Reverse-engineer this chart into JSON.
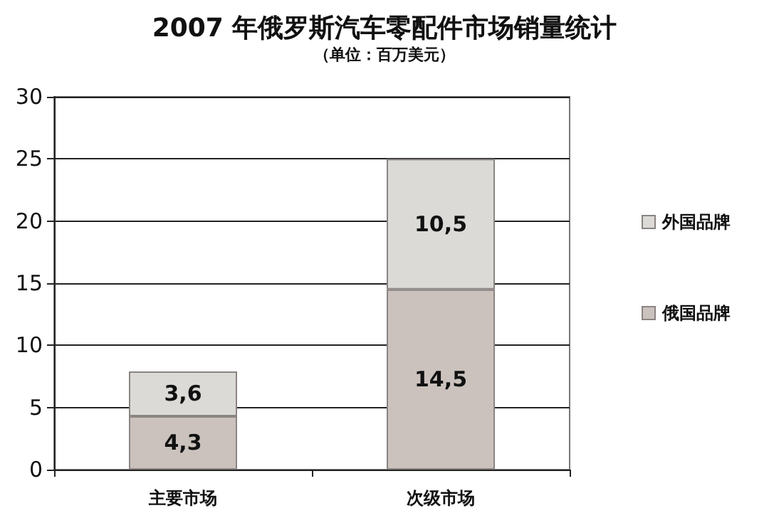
{
  "chart_data": {
    "type": "bar",
    "title": "2007 年俄罗斯汽车零配件市场销量统计",
    "subtitle": "（单位：百万美元）",
    "categories": [
      "主要市场",
      "次级市场"
    ],
    "stacked": true,
    "series": [
      {
        "name": "俄国品牌",
        "color": "#cbc2bd",
        "values": [
          4.3,
          14.5
        ],
        "value_labels": [
          "4,3",
          "14,5"
        ]
      },
      {
        "name": "外国品牌",
        "color": "#dcdad7",
        "values": [
          3.6,
          10.5
        ],
        "value_labels": [
          "3,6",
          "10,5"
        ]
      }
    ],
    "ylim": [
      0,
      30
    ],
    "yticks": [
      0,
      5,
      10,
      15,
      20,
      25,
      30
    ],
    "grid": "y",
    "legend": "right"
  }
}
